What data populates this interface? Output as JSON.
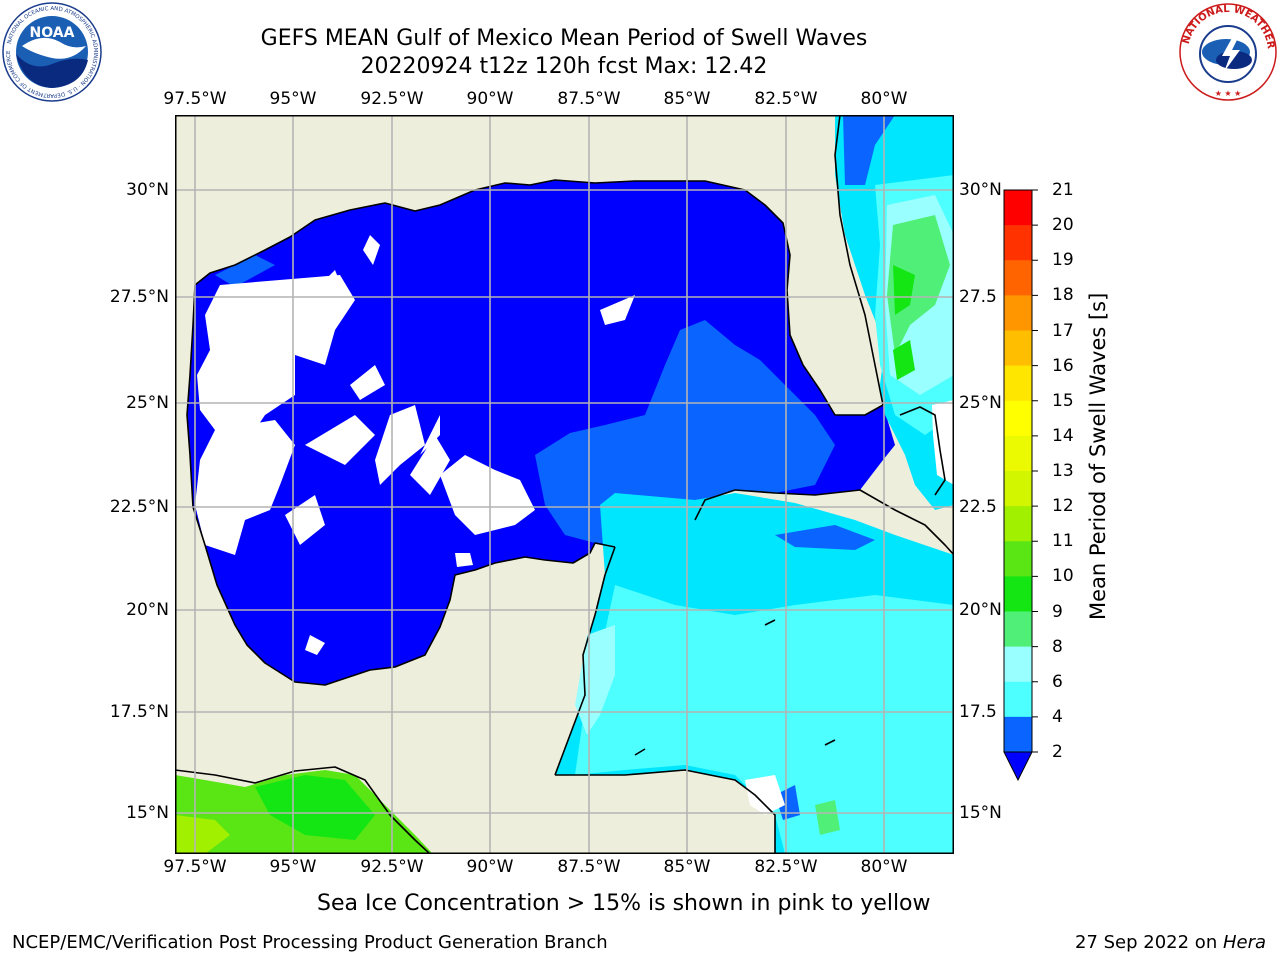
{
  "title": {
    "line1": "GEFS MEAN Gulf of Mexico Mean Period of Swell Waves",
    "line2": "20220924 t12z 120h fcst   Max: 12.42"
  },
  "map": {
    "lon_labels": [
      "97.5°W",
      "95°W",
      "92.5°W",
      "90°W",
      "87.5°W",
      "85°W",
      "82.5°W",
      "80°W"
    ],
    "lat_labels_left": [
      "30°N",
      "27.5°N",
      "25°N",
      "22.5°N",
      "20°N",
      "17.5°N",
      "15°N"
    ],
    "lat_labels_right": [
      "30°N",
      "27.5",
      "25°N",
      "22.5",
      "20°N",
      "17.5",
      "15°N"
    ]
  },
  "colorbar": {
    "title": "Mean Period of Swell Waves [s]",
    "ticks": [
      "2",
      "4",
      "6",
      "8",
      "9",
      "10",
      "11",
      "12",
      "13",
      "14",
      "15",
      "16",
      "17",
      "18",
      "19",
      "20",
      "21"
    ],
    "colors": [
      "#0a64ff",
      "#00e6ff",
      "#4dffff",
      "#9affff",
      "#50f078",
      "#14e614",
      "#5ae614",
      "#a0f000",
      "#d2f500",
      "#ebfa00",
      "#ffff00",
      "#ffe600",
      "#ffbe00",
      "#ff9600",
      "#ff6400",
      "#ff3200",
      "#ff0000"
    ],
    "extend_color": "#0000ff"
  },
  "colors": {
    "land": "#eeeedc",
    "swell_low": "#0000ff",
    "swell_2_4": "#0a64ff",
    "swell_4_6": "#00e6ff",
    "swell_6_8": "#4dffff",
    "swell_8_9": "#9affff",
    "swell_10_11": "#14e614",
    "swell_11_12": "#5ae614",
    "grid": "#b4b4b4"
  },
  "logos": {
    "left": "NOAA",
    "right_text": "NATIONAL WEATHER SERVICE"
  },
  "note": "Sea Ice Concentration > 15% is shown in pink to yellow",
  "footer": {
    "left": "NCEP/EMC/Verification Post Processing Product Generation Branch",
    "right_date": "27 Sep 2022 on ",
    "right_host": "Hera"
  }
}
